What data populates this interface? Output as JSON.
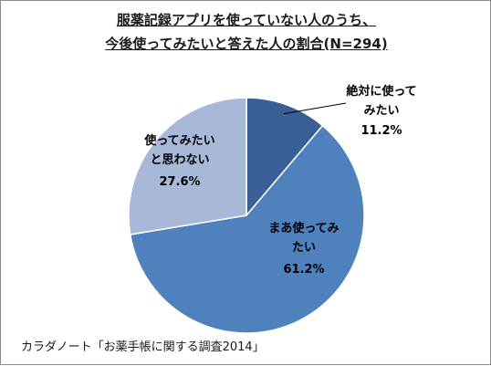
{
  "chart_data": {
    "type": "pie",
    "title": [
      "服薬記録アプリを使っていない人のうち、",
      "今後使ってみたいと答えた人の割合(N=294)"
    ],
    "slices": [
      {
        "label": [
          "絶対に使って",
          "みたい"
        ],
        "value": 11.2,
        "value_label": "11.2%",
        "color": "#3a5f96"
      },
      {
        "label": [
          "まあ使ってみ",
          "たい"
        ],
        "value": 61.2,
        "value_label": "61.2%",
        "color": "#4f81bd"
      },
      {
        "label": [
          "使ってみたい",
          "と思わない"
        ],
        "value": 27.6,
        "value_label": "27.6%",
        "color": "#a8b8d8"
      }
    ],
    "start_angle_deg": -90,
    "direction": "clockwise"
  },
  "source": "カラダノート「お薬手帳に関する調査2014」"
}
